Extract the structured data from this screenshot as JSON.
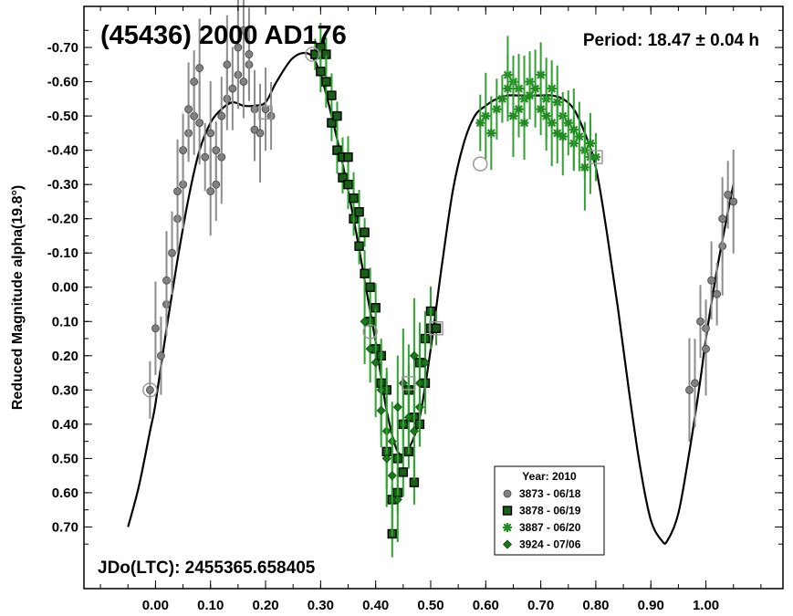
{
  "chart_data": {
    "type": "scatter",
    "title": "(45436) 2000 AD176",
    "period_label": "Period: 18.47 ± 0.04 h",
    "jd_label": "JDo(LTC): 2455365.658405",
    "ylabel": "Reduced Magnitude alpha(19.8°)",
    "xlabel": "",
    "xlim": [
      -0.13,
      1.14
    ],
    "ylim": [
      -0.82,
      0.88
    ],
    "y_inverted": true,
    "x_ticks": [
      "0.00",
      "0.10",
      "0.20",
      "0.30",
      "0.40",
      "0.50",
      "0.60",
      "0.70",
      "0.80",
      "0.90",
      "1.00"
    ],
    "y_ticks": [
      "-0.70",
      "-0.60",
      "-0.50",
      "-0.40",
      "-0.30",
      "-0.20",
      "-0.10",
      "0.00",
      "0.10",
      "0.20",
      "0.30",
      "0.40",
      "0.50",
      "0.60",
      "0.70"
    ],
    "grid": false,
    "legend": {
      "title": "Year: 2010",
      "position": "bottom-right",
      "entries": [
        "3873 - 06/18",
        "3878 - 06/19",
        "3887 - 06/20",
        "3924 - 07/06"
      ]
    },
    "fit_curve": {
      "x": [
        -0.05,
        -0.03,
        -0.01,
        0.0,
        0.02,
        0.04,
        0.06,
        0.08,
        0.1,
        0.12,
        0.14,
        0.16,
        0.18,
        0.2,
        0.22,
        0.25,
        0.28,
        0.3,
        0.32,
        0.34,
        0.36,
        0.38,
        0.4,
        0.42,
        0.44,
        0.46,
        0.48,
        0.5,
        0.52,
        0.54,
        0.56,
        0.58,
        0.6,
        0.62,
        0.64,
        0.66,
        0.68,
        0.7,
        0.72,
        0.74,
        0.76,
        0.78,
        0.8,
        0.82,
        0.84,
        0.86,
        0.88,
        0.9,
        0.92,
        0.93,
        0.95,
        0.97,
        0.99,
        1.0,
        1.02,
        1.04,
        1.05
      ],
      "y": [
        0.7,
        0.58,
        0.42,
        0.34,
        0.12,
        -0.08,
        -0.26,
        -0.4,
        -0.48,
        -0.52,
        -0.54,
        -0.53,
        -0.53,
        -0.54,
        -0.6,
        -0.67,
        -0.68,
        -0.62,
        -0.5,
        -0.36,
        -0.2,
        -0.02,
        0.16,
        0.36,
        0.48,
        0.47,
        0.38,
        0.18,
        -0.06,
        -0.28,
        -0.42,
        -0.5,
        -0.53,
        -0.55,
        -0.56,
        -0.56,
        -0.56,
        -0.56,
        -0.56,
        -0.55,
        -0.52,
        -0.45,
        -0.35,
        -0.16,
        0.06,
        0.3,
        0.52,
        0.68,
        0.74,
        0.74,
        0.66,
        0.48,
        0.27,
        0.15,
        -0.05,
        -0.22,
        -0.3
      ]
    },
    "series": [
      {
        "name": "3873 - 06/18",
        "marker": "circle",
        "color": "#808080",
        "x": [
          -0.01,
          0.0,
          0.01,
          0.02,
          0.02,
          0.03,
          0.04,
          0.04,
          0.05,
          0.05,
          0.06,
          0.06,
          0.07,
          0.07,
          0.08,
          0.08,
          0.09,
          0.1,
          0.1,
          0.11,
          0.11,
          0.12,
          0.12,
          0.13,
          0.13,
          0.14,
          0.15,
          0.15,
          0.16,
          0.16,
          0.17,
          0.17,
          0.18,
          0.18,
          0.19,
          0.2,
          0.21,
          0.97,
          0.98,
          0.99,
          1.0,
          1.0,
          1.01,
          1.02,
          1.03,
          1.03,
          1.04,
          1.05
        ],
        "y": [
          0.3,
          0.12,
          0.2,
          0.05,
          -0.02,
          -0.1,
          -0.2,
          -0.28,
          -0.3,
          -0.4,
          -0.45,
          -0.52,
          -0.5,
          -0.6,
          -0.64,
          -0.48,
          -0.38,
          -0.45,
          -0.28,
          -0.3,
          -0.4,
          -0.38,
          -0.5,
          -0.55,
          -0.65,
          -0.58,
          -0.62,
          -0.7,
          -0.75,
          -0.6,
          -0.65,
          -0.68,
          -0.52,
          -0.46,
          -0.45,
          -0.52,
          -0.5,
          0.3,
          0.28,
          0.1,
          0.12,
          0.18,
          -0.02,
          0.02,
          -0.12,
          -0.2,
          -0.27,
          -0.25
        ],
        "err": 0.12
      },
      {
        "name": "3878 - 06/19",
        "marker": "square",
        "color": "#1a5e1a",
        "x": [
          0.29,
          0.3,
          0.3,
          0.31,
          0.31,
          0.32,
          0.32,
          0.33,
          0.33,
          0.34,
          0.34,
          0.35,
          0.35,
          0.36,
          0.36,
          0.37,
          0.37,
          0.38,
          0.38,
          0.39,
          0.39,
          0.4,
          0.4,
          0.41,
          0.41,
          0.42,
          0.42,
          0.43,
          0.43,
          0.44,
          0.44,
          0.45,
          0.45,
          0.46,
          0.46,
          0.47,
          0.47,
          0.48,
          0.48,
          0.49,
          0.49,
          0.5,
          0.5,
          0.51
        ],
        "y": [
          -0.68,
          -0.7,
          -0.63,
          -0.68,
          -0.6,
          -0.56,
          -0.48,
          -0.5,
          -0.4,
          -0.38,
          -0.32,
          -0.3,
          -0.38,
          -0.2,
          -0.26,
          -0.22,
          -0.12,
          -0.16,
          -0.04,
          0.0,
          0.1,
          0.06,
          0.18,
          0.2,
          0.28,
          0.3,
          0.48,
          0.62,
          0.72,
          0.6,
          0.5,
          0.54,
          0.4,
          0.48,
          0.3,
          0.57,
          0.38,
          0.4,
          0.22,
          0.28,
          0.15,
          0.07,
          0.12,
          0.12
        ],
        "err": 0.06
      },
      {
        "name": "3887 - 06/20",
        "marker": "star",
        "color": "#228b22",
        "x": [
          0.59,
          0.6,
          0.61,
          0.62,
          0.63,
          0.64,
          0.64,
          0.65,
          0.65,
          0.66,
          0.66,
          0.67,
          0.67,
          0.68,
          0.68,
          0.69,
          0.7,
          0.7,
          0.71,
          0.71,
          0.72,
          0.72,
          0.73,
          0.73,
          0.74,
          0.74,
          0.75,
          0.76,
          0.76,
          0.77,
          0.78,
          0.78,
          0.79,
          0.79,
          0.8
        ],
        "y": [
          -0.48,
          -0.5,
          -0.45,
          -0.52,
          -0.55,
          -0.62,
          -0.58,
          -0.6,
          -0.5,
          -0.58,
          -0.52,
          -0.55,
          -0.48,
          -0.6,
          -0.56,
          -0.58,
          -0.62,
          -0.52,
          -0.55,
          -0.5,
          -0.58,
          -0.48,
          -0.54,
          -0.45,
          -0.5,
          -0.44,
          -0.48,
          -0.42,
          -0.46,
          -0.44,
          -0.4,
          -0.35,
          -0.38,
          -0.42,
          -0.38
        ],
        "err": 0.1
      },
      {
        "name": "3924 - 07/06",
        "marker": "diamond",
        "color": "#1a7a1a",
        "x": [
          0.38,
          0.39,
          0.4,
          0.41,
          0.41,
          0.42,
          0.42,
          0.43,
          0.43,
          0.44,
          0.44,
          0.45,
          0.45,
          0.46,
          0.46,
          0.47,
          0.47,
          0.48,
          0.48,
          0.49
        ],
        "y": [
          0.1,
          0.18,
          0.22,
          0.3,
          0.36,
          0.42,
          0.5,
          0.45,
          0.55,
          0.35,
          0.62,
          0.4,
          0.28,
          0.3,
          0.38,
          0.2,
          0.42,
          0.35,
          0.28,
          0.22
        ],
        "err": 0.14
      }
    ]
  }
}
